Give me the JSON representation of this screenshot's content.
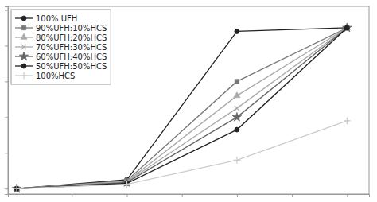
{
  "chart_data": {
    "type": "line",
    "x": [
      0,
      1,
      2,
      3
    ],
    "series": [
      {
        "name": "100% UFH",
        "color": "#222222",
        "marker": "circle",
        "values": [
          0,
          0.05,
          0.88,
          0.9
        ]
      },
      {
        "name": "90%UFH:10%HCS",
        "color": "#777777",
        "marker": "square",
        "values": [
          0,
          0.045,
          0.6,
          0.9
        ]
      },
      {
        "name": "80%UFH:20%HCS",
        "color": "#aaaaaa",
        "marker": "triangle",
        "values": [
          0,
          0.04,
          0.52,
          0.9
        ]
      },
      {
        "name": "70%UFH:30%HCS",
        "color": "#aaaaaa",
        "marker": "x",
        "values": [
          0,
          0.038,
          0.45,
          0.9
        ]
      },
      {
        "name": "60%UFH:40%HCS",
        "color": "#666666",
        "marker": "star",
        "values": [
          0,
          0.035,
          0.4,
          0.9
        ]
      },
      {
        "name": "50%UFH:50%HCS",
        "color": "#222222",
        "marker": "circle",
        "values": [
          0,
          0.03,
          0.33,
          0.9
        ]
      },
      {
        "name": "100%HCS",
        "color": "#cccccc",
        "marker": "plus",
        "values": [
          0,
          0.025,
          0.16,
          0.38
        ]
      }
    ],
    "xlim": [
      -0.08,
      3.2
    ],
    "ylim": [
      -0.03,
      1.02
    ],
    "xticks": [
      0,
      0.5,
      1.0,
      1.5,
      2.0,
      2.5,
      3.0
    ],
    "yticks": [
      0,
      0.2,
      0.4,
      0.6,
      0.8,
      1.0
    ],
    "tick_labels": false,
    "grid": false,
    "legend": "upper left",
    "line_style": "solid"
  }
}
